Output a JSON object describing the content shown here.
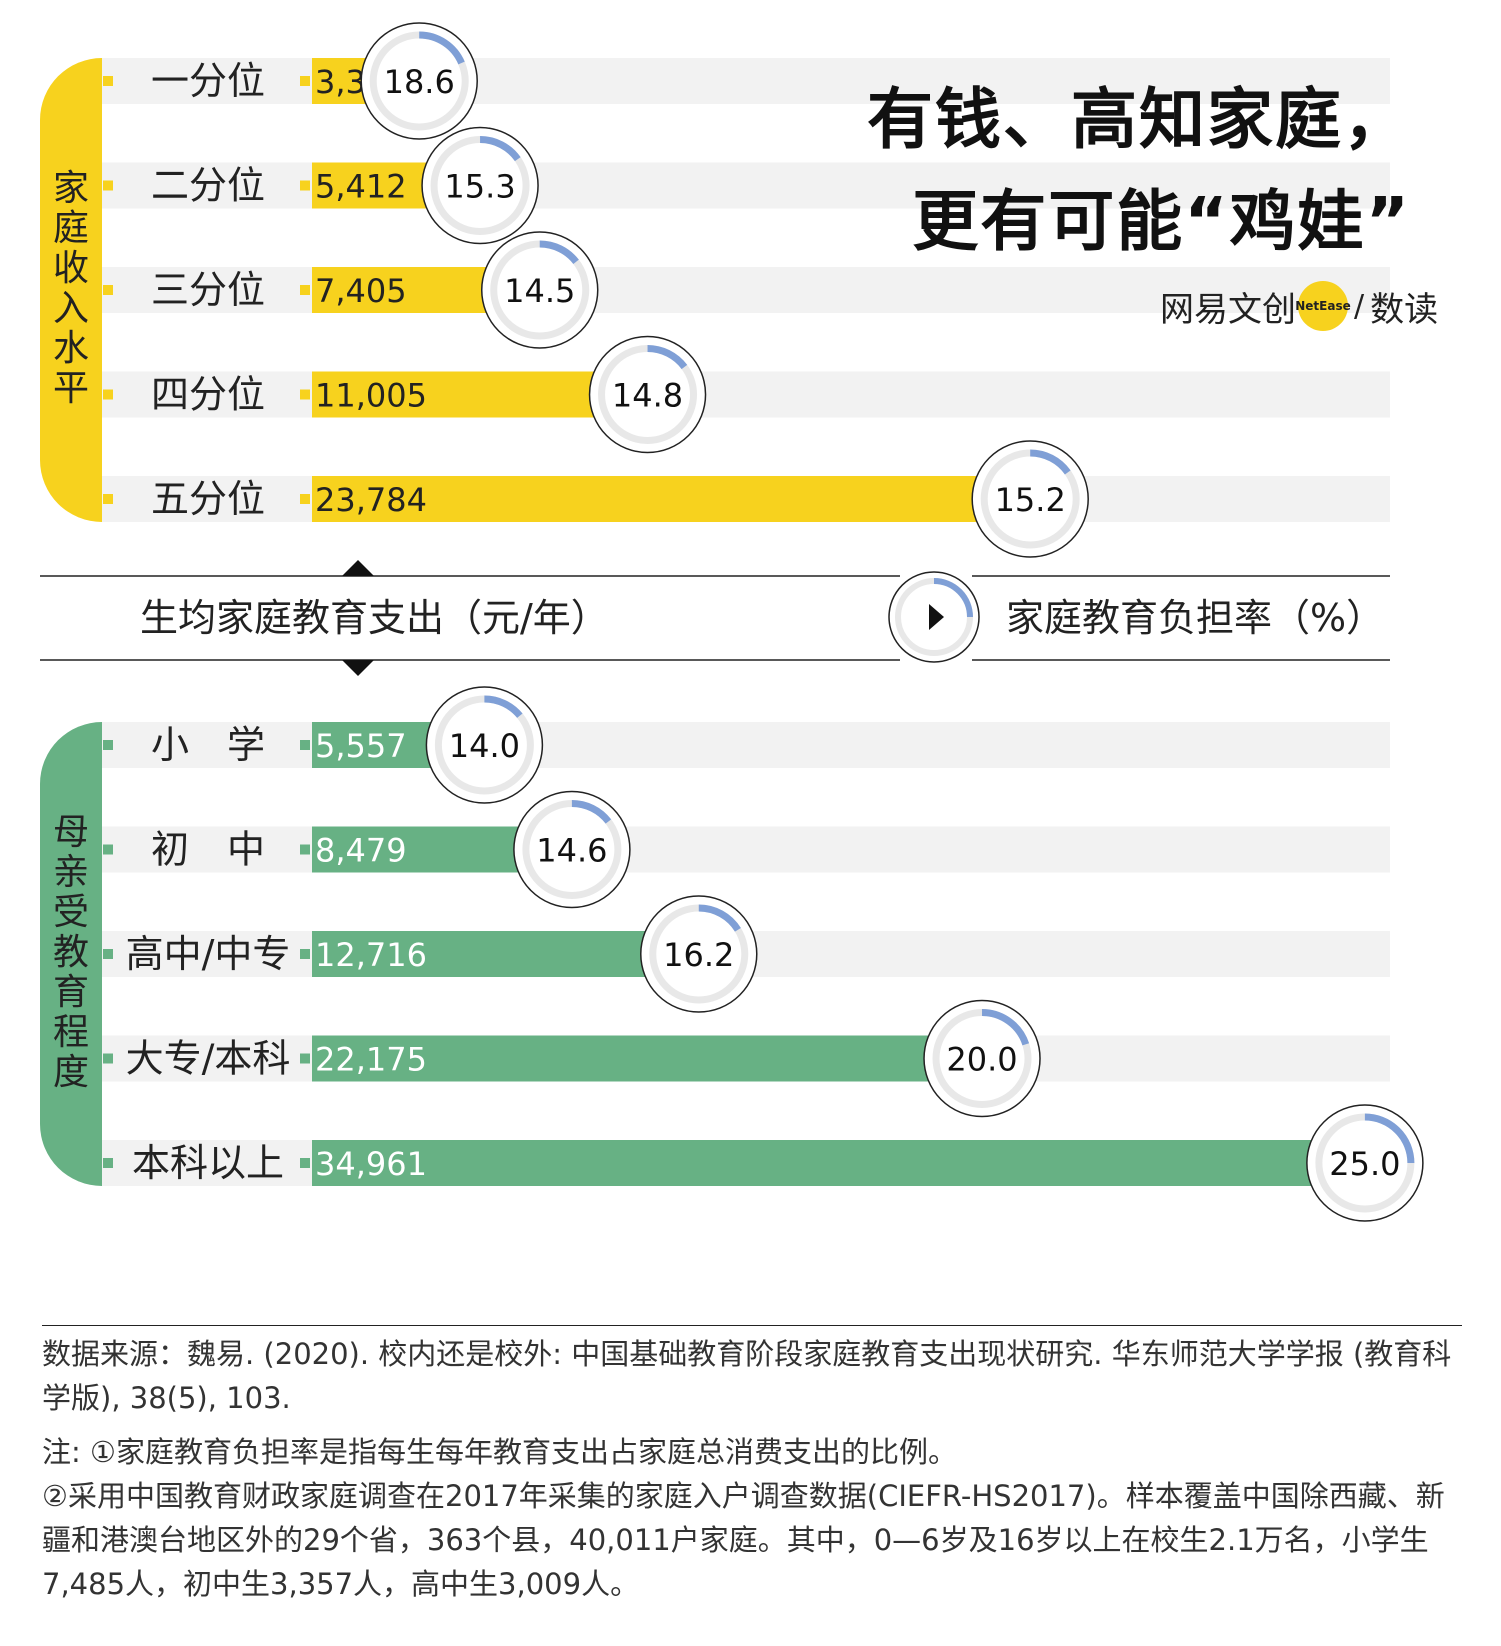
{
  "title": {
    "line1": "有钱、高知家庭，",
    "line2": "更有可能“鸡娃”"
  },
  "brand": {
    "name": "网易文创",
    "badge": "NetEase",
    "slash": "/",
    "sub": "数读"
  },
  "colors": {
    "income": "#f7d21e",
    "education": "#67b184",
    "ring_track": "#e8e8e8",
    "ring_value": "#7f9fd6",
    "row_bg": "#f2f2f2"
  },
  "chart_data": {
    "type": "bar",
    "legend": {
      "left": "生均家庭教育支出（元/年）",
      "right": "家庭教育负担率（%）"
    },
    "xlim": [
      0,
      36000
    ],
    "groups": [
      {
        "label": "家庭收入水平",
        "color": "#f7d21e",
        "categories": [
          "一分位",
          "二分位",
          "三分位",
          "四分位",
          "五分位"
        ],
        "values": [
          3380,
          5412,
          7405,
          11005,
          23784
        ],
        "value_labels": [
          "3,380",
          "5,412",
          "7,405",
          "11,005",
          "23,784"
        ],
        "rates": [
          18.6,
          15.3,
          14.5,
          14.8,
          15.2
        ],
        "rate_labels": [
          "18.6",
          "15.3",
          "14.5",
          "14.8",
          "15.2"
        ]
      },
      {
        "label": "母亲受教育程度",
        "color": "#67b184",
        "categories": [
          "小　学",
          "初　中",
          "高中/中专",
          "大专/本科",
          "本科以上"
        ],
        "values": [
          5557,
          8479,
          12716,
          22175,
          34961
        ],
        "value_labels": [
          "5,557",
          "8,479",
          "12,716",
          "22,175",
          "34,961"
        ],
        "rates": [
          14.0,
          14.6,
          16.2,
          20.0,
          25.0
        ],
        "rate_labels": [
          "14.0",
          "14.6",
          "16.2",
          "20.0",
          "25.0"
        ]
      }
    ]
  },
  "footer": {
    "source": "数据来源：魏易. (2020). 校内还是校外: 中国基础教育阶段家庭教育支出现状研究. 华东师范大学学报 (教育科学版), 38(5), 103.",
    "note1": "注: ①家庭教育负担率是指每生每年教育支出占家庭总消费支出的比例。",
    "note2": "②采用中国教育财政家庭调查在2017年采集的家庭入户调查数据(CIEFR-HS2017)。样本覆盖中国除西藏、新疆和港澳台地区外的29个省，363个县，40,011户家庭。其中，0—6岁及16岁以上在校生2.1万名，小学生7,485人，初中生3,357人，高中生3,009人。"
  }
}
